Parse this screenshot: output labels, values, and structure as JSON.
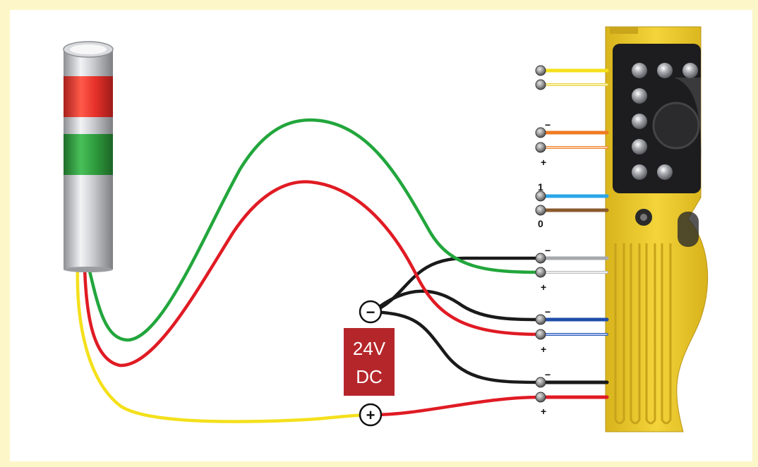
{
  "power_supply": {
    "voltage": "24V",
    "type": "DC",
    "negative_symbol": "−",
    "positive_symbol": "+"
  },
  "terminal_marks": {
    "orange_top": "−",
    "orange_bottom": "+",
    "blue_top": "1",
    "blue_bottom": "0",
    "gray_top": "−",
    "gray_bottom": "+",
    "navy_top": "−",
    "navy_bottom": "+",
    "black_top": "−",
    "black_bottom": "+"
  },
  "colors": {
    "wire_green": "#22a63c",
    "wire_red": "#e01b24",
    "wire_yellow": "#f4e01c",
    "wire_black": "#1a1a1a",
    "psu_box": "#b5262b",
    "device_body": "#e8c72c",
    "tower_red": "#e5302a",
    "tower_green": "#2e9a3c"
  }
}
